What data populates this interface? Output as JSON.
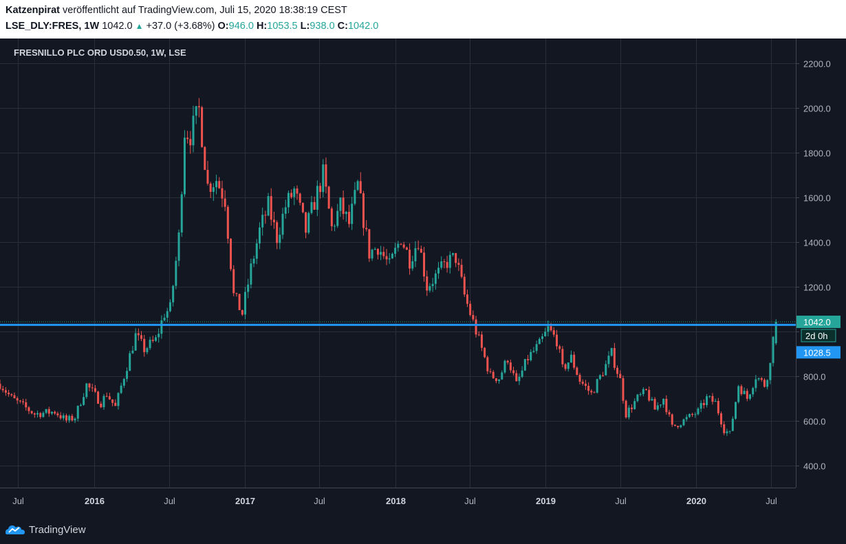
{
  "header": {
    "author": "Katzenpirat",
    "published": "veröffentlicht auf TradingView.com, Juli 15, 2020 18:38:19 CEST",
    "symbol": "LSE_DLY:FRES, 1W",
    "price": "1042.0",
    "change": "+37.0 (+3.68%)",
    "open_label": "O:",
    "open": "946.0",
    "high_label": "H:",
    "high": "1053.5",
    "low_label": "L:",
    "low": "938.0",
    "close_label": "C:",
    "close": "1042.0"
  },
  "footer": {
    "brand": "TradingView"
  },
  "colors": {
    "background": "#131722",
    "grid": "#2a2e39",
    "up": "#26a69a",
    "down": "#ef5350",
    "hline": "#2196f3",
    "text": "#b2b5be"
  },
  "chart_data": {
    "type": "candlestick",
    "title": "FRESNILLO PLC ORD USD0.50, 1W, LSE",
    "y_ticks": [
      400,
      600,
      800,
      1000,
      1200,
      1400,
      1600,
      1800,
      2000,
      2200
    ],
    "y_tick_labels": [
      "400.0",
      "600.0",
      "800.0",
      "",
      "1200.0",
      "1400.0",
      "1600.0",
      "1800.0",
      "2000.0",
      "2200.0"
    ],
    "ylim": [
      300,
      2310
    ],
    "x_ticks": [
      "2015-07-01",
      "2016-01-01",
      "2016-07-01",
      "2017-01-01",
      "2017-07-01",
      "2018-01-01",
      "2018-07-01",
      "2019-01-01",
      "2019-07-01",
      "2020-01-01",
      "2020-07-01"
    ],
    "x_tick_labels": [
      "Jul",
      "2016",
      "Jul",
      "2017",
      "Jul",
      "2018",
      "Jul",
      "2019",
      "Jul",
      "2020",
      "Jul"
    ],
    "xlim": [
      "2015-05-18",
      "2020-08-30"
    ],
    "grid": true,
    "horizontal_line": {
      "value": 1028.5,
      "label": "1028.5"
    },
    "last_price": {
      "value": 1042.0,
      "label": "1042.0",
      "countdown": "2d 0h"
    },
    "anchors": [
      [
        "2015-05-18",
        765
      ],
      [
        "2015-06-15",
        700
      ],
      [
        "2015-08-10",
        630
      ],
      [
        "2015-09-28",
        640
      ],
      [
        "2015-10-26",
        600
      ],
      [
        "2015-11-16",
        615
      ],
      [
        "2015-12-14",
        760
      ],
      [
        "2016-01-18",
        680
      ],
      [
        "2016-02-01",
        720
      ],
      [
        "2016-02-22",
        660
      ],
      [
        "2016-03-14",
        800
      ],
      [
        "2016-04-11",
        980
      ],
      [
        "2016-05-02",
        920
      ],
      [
        "2016-05-30",
        960
      ],
      [
        "2016-06-20",
        1080
      ],
      [
        "2016-07-04",
        1100
      ],
      [
        "2016-07-25",
        1420
      ],
      [
        "2016-08-08",
        1900
      ],
      [
        "2016-08-22",
        1880
      ],
      [
        "2016-09-12",
        1990
      ],
      [
        "2016-10-03",
        1650
      ],
      [
        "2016-10-24",
        1680
      ],
      [
        "2016-11-14",
        1590
      ],
      [
        "2016-12-05",
        1160
      ],
      [
        "2016-12-26",
        1080
      ],
      [
        "2017-01-16",
        1280
      ],
      [
        "2017-02-06",
        1450
      ],
      [
        "2017-02-27",
        1560
      ],
      [
        "2017-03-20",
        1420
      ],
      [
        "2017-04-10",
        1560
      ],
      [
        "2017-05-01",
        1630
      ],
      [
        "2017-05-29",
        1450
      ],
      [
        "2017-06-19",
        1580
      ],
      [
        "2017-07-10",
        1700
      ],
      [
        "2017-07-31",
        1460
      ],
      [
        "2017-08-21",
        1560
      ],
      [
        "2017-09-11",
        1480
      ],
      [
        "2017-10-02",
        1650
      ],
      [
        "2017-10-30",
        1350
      ],
      [
        "2017-11-20",
        1380
      ],
      [
        "2017-12-18",
        1290
      ],
      [
        "2018-01-15",
        1420
      ],
      [
        "2018-02-05",
        1320
      ],
      [
        "2018-02-26",
        1410
      ],
      [
        "2018-03-19",
        1200
      ],
      [
        "2018-04-16",
        1260
      ],
      [
        "2018-05-07",
        1310
      ],
      [
        "2018-05-28",
        1330
      ],
      [
        "2018-06-18",
        1160
      ],
      [
        "2018-07-09",
        1040
      ],
      [
        "2018-07-30",
        920
      ],
      [
        "2018-08-20",
        800
      ],
      [
        "2018-09-10",
        790
      ],
      [
        "2018-10-01",
        880
      ],
      [
        "2018-10-22",
        760
      ],
      [
        "2018-11-19",
        880
      ],
      [
        "2018-12-17",
        940
      ],
      [
        "2019-01-07",
        1010
      ],
      [
        "2019-01-28",
        960
      ],
      [
        "2019-02-11",
        830
      ],
      [
        "2019-03-04",
        880
      ],
      [
        "2019-03-25",
        780
      ],
      [
        "2019-04-22",
        720
      ],
      [
        "2019-05-20",
        820
      ],
      [
        "2019-06-10",
        900
      ],
      [
        "2019-07-01",
        780
      ],
      [
        "2019-07-15",
        630
      ],
      [
        "2019-08-12",
        700
      ],
      [
        "2019-09-02",
        730
      ],
      [
        "2019-09-23",
        650
      ],
      [
        "2019-10-14",
        700
      ],
      [
        "2019-11-04",
        570
      ],
      [
        "2019-12-02",
        600
      ],
      [
        "2020-01-06",
        640
      ],
      [
        "2020-01-27",
        700
      ],
      [
        "2020-02-17",
        680
      ],
      [
        "2020-03-09",
        560
      ],
      [
        "2020-03-23",
        540
      ],
      [
        "2020-04-13",
        760
      ],
      [
        "2020-05-04",
        700
      ],
      [
        "2020-05-25",
        800
      ],
      [
        "2020-06-15",
        760
      ],
      [
        "2020-06-29",
        850
      ],
      [
        "2020-07-06",
        1000
      ],
      [
        "2020-07-13",
        1042
      ]
    ],
    "last_candle": {
      "date": "2020-07-13",
      "open": 946.0,
      "high": 1053.5,
      "low": 938.0,
      "close": 1042.0
    }
  }
}
